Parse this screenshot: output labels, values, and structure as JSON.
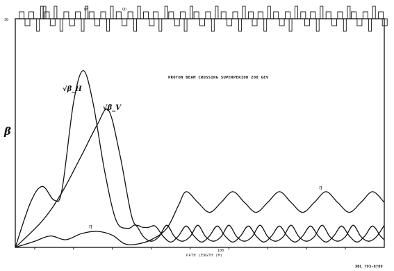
{
  "chart_data": {
    "type": "line",
    "title": "PROTON BEAM CROSSING SUPERPERIOD  200 GEV",
    "xlabel": "PATH LENGTH (M)",
    "ylabel": "β",
    "ylim": [
      0,
      30
    ],
    "y_tick_labels": [
      "30"
    ],
    "x_tick_labels": [
      "100"
    ],
    "grid": false,
    "lattice_labels": [
      "QF",
      "QD"
    ],
    "reference_id": "XBL 793-8789",
    "series": [
      {
        "name": "√β_H",
        "points": [
          [
            0,
            0
          ],
          [
            8,
            6
          ],
          [
            14,
            8
          ],
          [
            20,
            6.2
          ],
          [
            24,
            7.5
          ],
          [
            30,
            19
          ],
          [
            35,
            23.2
          ],
          [
            40,
            19
          ],
          [
            46,
            10
          ],
          [
            52,
            3.5
          ],
          [
            58,
            2.5
          ],
          [
            62,
            2.9
          ],
          [
            66,
            1.4
          ],
          [
            70,
            0.8
          ],
          [
            74,
            1.4
          ],
          [
            78,
            2.9
          ],
          [
            82,
            1.4
          ],
          [
            86,
            0.8
          ],
          [
            90,
            1.4
          ],
          [
            94,
            2.9
          ],
          [
            98,
            1.4
          ],
          [
            102,
            0.8
          ],
          [
            106,
            1.4
          ],
          [
            110,
            2.9
          ],
          [
            114,
            1.4
          ],
          [
            118,
            0.8
          ],
          [
            122,
            1.4
          ],
          [
            126,
            2.9
          ],
          [
            130,
            1.4
          ],
          [
            134,
            0.8
          ],
          [
            138,
            1.4
          ],
          [
            142,
            2.9
          ],
          [
            146,
            1.4
          ],
          [
            150,
            0.8
          ],
          [
            154,
            1.4
          ],
          [
            158,
            2.9
          ],
          [
            162,
            1.4
          ],
          [
            166,
            0.8
          ],
          [
            170,
            1.4
          ],
          [
            174,
            2.9
          ],
          [
            178,
            1.4
          ],
          [
            182,
            0.8
          ],
          [
            186,
            1.4
          ],
          [
            190,
            2.9
          ]
        ]
      },
      {
        "name": "√β_V",
        "points": [
          [
            0,
            0
          ],
          [
            14,
            3.5
          ],
          [
            24,
            7.2
          ],
          [
            34,
            12
          ],
          [
            42,
            16
          ],
          [
            48,
            18
          ],
          [
            54,
            12
          ],
          [
            60,
            4
          ],
          [
            64,
            2.8
          ],
          [
            68,
            2.6
          ],
          [
            72,
            2.8
          ],
          [
            76,
            1.5
          ],
          [
            80,
            0.7
          ],
          [
            84,
            1.5
          ],
          [
            88,
            2.8
          ],
          [
            92,
            1.5
          ],
          [
            96,
            0.7
          ],
          [
            100,
            1.5
          ],
          [
            104,
            2.8
          ],
          [
            108,
            1.5
          ],
          [
            112,
            0.7
          ],
          [
            116,
            1.5
          ],
          [
            120,
            2.8
          ],
          [
            124,
            1.5
          ],
          [
            128,
            0.7
          ],
          [
            132,
            1.5
          ],
          [
            136,
            2.8
          ],
          [
            140,
            1.5
          ],
          [
            144,
            0.7
          ],
          [
            148,
            1.5
          ],
          [
            152,
            2.8
          ],
          [
            156,
            1.5
          ],
          [
            160,
            0.7
          ],
          [
            164,
            1.5
          ],
          [
            168,
            2.8
          ],
          [
            172,
            1.5
          ],
          [
            176,
            0.7
          ],
          [
            180,
            1.5
          ],
          [
            184,
            2.8
          ],
          [
            188,
            1.5
          ],
          [
            190,
            1.0
          ]
        ]
      },
      {
        "name": "η",
        "points": [
          [
            0,
            0
          ],
          [
            10,
            0.8
          ],
          [
            18,
            1.5
          ],
          [
            26,
            1.0
          ],
          [
            34,
            1.8
          ],
          [
            42,
            2.1
          ],
          [
            50,
            1.6
          ],
          [
            56,
            0.5
          ],
          [
            62,
            0.4
          ],
          [
            70,
            1.0
          ],
          [
            78,
            2.5
          ],
          [
            84,
            5.5
          ],
          [
            88,
            7.3
          ],
          [
            94,
            5.9
          ],
          [
            100,
            4.6
          ],
          [
            106,
            5.9
          ],
          [
            112,
            7.3
          ],
          [
            118,
            5.9
          ],
          [
            124,
            4.6
          ],
          [
            130,
            5.9
          ],
          [
            136,
            7.3
          ],
          [
            142,
            5.9
          ],
          [
            148,
            4.6
          ],
          [
            154,
            5.9
          ],
          [
            160,
            7.3
          ],
          [
            166,
            5.9
          ],
          [
            172,
            4.6
          ],
          [
            178,
            5.9
          ],
          [
            184,
            7.3
          ],
          [
            190,
            5.9
          ]
        ]
      }
    ],
    "curve_labels": {
      "bh": "√β_H",
      "bv": "√β_V",
      "eta_low": "η",
      "eta_high": "η"
    },
    "lattice_magnets": [
      [
        -2,
        2
      ],
      [
        2,
        1
      ],
      [
        5,
        -1
      ],
      [
        7,
        1
      ],
      [
        11,
        -2
      ],
      [
        13,
        2
      ],
      [
        15,
        1
      ],
      [
        18,
        -1
      ],
      [
        20,
        2
      ],
      [
        23,
        -2
      ],
      [
        25,
        1
      ],
      [
        28,
        -1
      ],
      [
        31,
        1
      ],
      [
        34,
        -2
      ],
      [
        36,
        2
      ],
      [
        38,
        1
      ],
      [
        41,
        -1
      ],
      [
        44,
        1
      ],
      [
        47,
        -2
      ],
      [
        49,
        2
      ],
      [
        52,
        1
      ],
      [
        55,
        -1
      ],
      [
        58,
        1
      ],
      [
        61,
        -2
      ],
      [
        63,
        2
      ],
      [
        66,
        1
      ],
      [
        69,
        -1
      ],
      [
        71,
        1
      ],
      [
        74,
        -2
      ],
      [
        77,
        2
      ],
      [
        79,
        1
      ],
      [
        82,
        -1
      ],
      [
        85,
        1
      ],
      [
        87,
        -2
      ],
      [
        90,
        2
      ],
      [
        92,
        1
      ],
      [
        95,
        -1
      ],
      [
        98,
        1
      ],
      [
        101,
        -2
      ],
      [
        103,
        2
      ],
      [
        106,
        1
      ],
      [
        109,
        -1
      ],
      [
        112,
        1
      ],
      [
        115,
        -2
      ],
      [
        117,
        2
      ],
      [
        120,
        1
      ],
      [
        122,
        -1
      ],
      [
        125,
        1
      ],
      [
        128,
        -2
      ],
      [
        130,
        2
      ],
      [
        133,
        1
      ],
      [
        136,
        -1
      ],
      [
        139,
        1
      ],
      [
        141,
        -2
      ],
      [
        144,
        2
      ],
      [
        147,
        1
      ],
      [
        149,
        -1
      ],
      [
        152,
        1
      ],
      [
        155,
        -2
      ],
      [
        157,
        2
      ],
      [
        160,
        1
      ],
      [
        163,
        -1
      ],
      [
        166,
        1
      ],
      [
        169,
        -2
      ],
      [
        171,
        2
      ],
      [
        173,
        1
      ],
      [
        176,
        -1
      ],
      [
        179,
        1
      ],
      [
        182,
        -2
      ],
      [
        184,
        2
      ],
      [
        187,
        1
      ],
      [
        189,
        -1
      ]
    ]
  }
}
